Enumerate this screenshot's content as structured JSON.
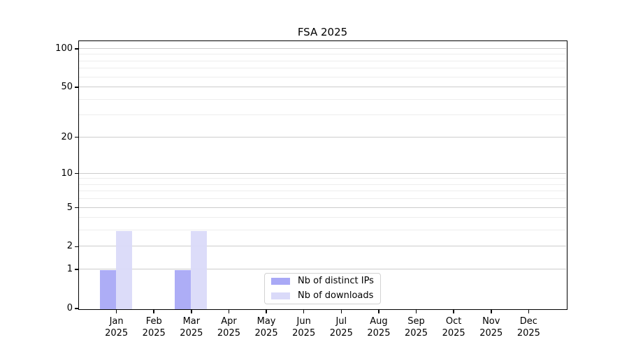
{
  "chart_data": {
    "type": "bar",
    "title": "FSA 2025",
    "categories": [
      "Jan 2025",
      "Feb 2025",
      "Mar 2025",
      "Apr 2025",
      "May 2025",
      "Jun 2025",
      "Jul 2025",
      "Aug 2025",
      "Sep 2025",
      "Oct 2025",
      "Nov 2025",
      "Dec 2025"
    ],
    "series": [
      {
        "name": "Nb of distinct IPs",
        "color": "#a9a9f6",
        "values": [
          1,
          0,
          1,
          0,
          0,
          0,
          0,
          0,
          0,
          0,
          0,
          0
        ]
      },
      {
        "name": "Nb of downloads",
        "color": "#dadaf9",
        "values": [
          3,
          0,
          3,
          0,
          0,
          0,
          0,
          0,
          0,
          0,
          0,
          0
        ]
      }
    ],
    "yscale": "log1p",
    "ylim": [
      0,
      115
    ],
    "yticks": [
      0,
      1,
      2,
      5,
      10,
      20,
      50,
      100
    ],
    "minor_gridlines": [
      3,
      4,
      6,
      7,
      8,
      9,
      30,
      40,
      60,
      70,
      80,
      90
    ],
    "grid": true,
    "legend_position": "lower center",
    "colors": {
      "major_grid": "#cccccc",
      "minor_grid": "#ededed",
      "axis": "#000000",
      "background": "#ffffff"
    }
  }
}
